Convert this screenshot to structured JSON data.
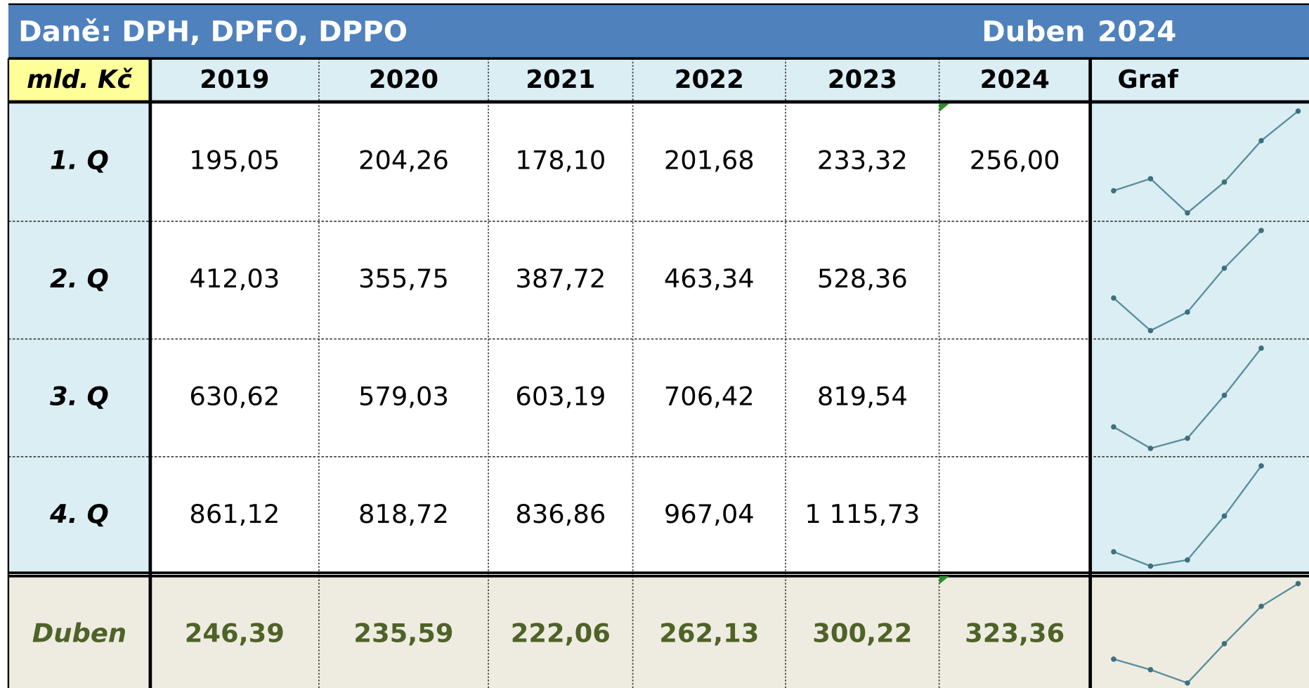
{
  "header": {
    "title": "Daně: DPH, DPFO, DPPO",
    "month": "Duben",
    "year": "2024"
  },
  "table": {
    "columns": [
      "mld. Kč",
      "2019",
      "2020",
      "2021",
      "2022",
      "2023",
      "2024",
      "Graf"
    ],
    "rows": [
      [
        "1. Q",
        "195,05",
        "204,26",
        "178,10",
        "201,68",
        "233,32",
        "256,00"
      ],
      [
        "2. Q",
        "412,03",
        "355,75",
        "387,72",
        "463,34",
        "528,36"
      ],
      [
        "3. Q",
        "630,62",
        "579,03",
        "603,19",
        "706,42",
        "819,54"
      ],
      [
        "4. Q",
        "861,12",
        "818,72",
        "836,86",
        "967,04",
        "1 115,73"
      ],
      [
        "Duben",
        "246,39",
        "235,59",
        "222,06",
        "262,13",
        "300,22",
        "323,36"
      ]
    ]
  }
}
